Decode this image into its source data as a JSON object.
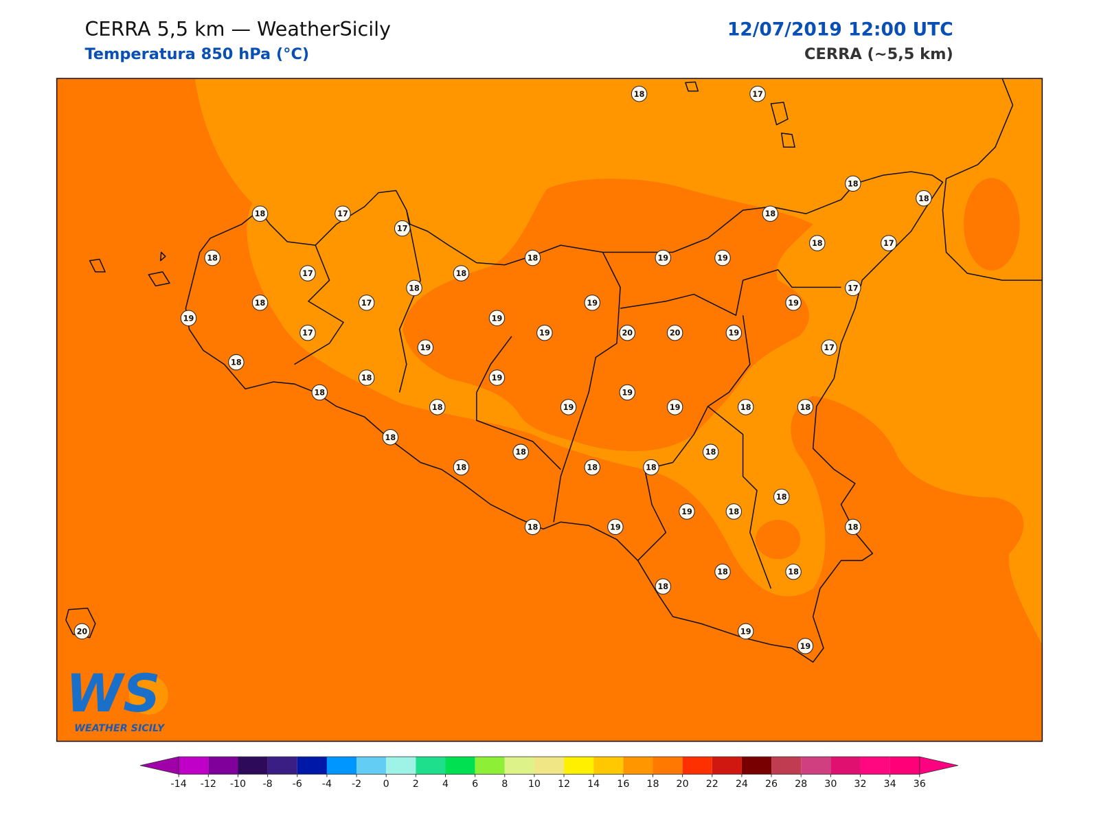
{
  "header": {
    "title": "CERRA 5,5 km — WeatherSicily",
    "subtitle": "Temperatura 850 hPa (°C)",
    "valid_time": "12/07/2019 12:00 UTC",
    "model": "CERRA (~5,5 km)"
  },
  "map": {
    "stations": [
      18,
      17,
      18,
      18,
      18,
      17,
      17,
      18,
      18,
      18,
      19,
      19,
      18,
      17,
      17,
      18,
      18,
      17,
      18,
      17,
      19,
      19,
      19,
      19,
      17,
      19,
      20,
      20,
      19,
      19,
      17,
      18,
      18,
      19,
      18,
      19,
      18,
      19,
      19,
      18,
      18,
      18,
      18,
      18,
      18,
      18,
      18,
      18,
      19,
      18,
      18,
      19,
      18,
      18,
      18,
      18,
      19,
      19,
      20
    ]
  },
  "colorbar": {
    "ticks": [
      -14,
      -12,
      -10,
      -8,
      -6,
      -4,
      -2,
      0,
      2,
      4,
      6,
      8,
      10,
      12,
      14,
      16,
      18,
      20,
      22,
      24,
      26,
      28,
      30,
      32,
      34,
      36
    ],
    "colors": [
      "#c000c8",
      "#80009c",
      "#2e0a5a",
      "#3a1e84",
      "#0018a8",
      "#0096ff",
      "#64cdf4",
      "#9ef2e6",
      "#1ee08c",
      "#00e050",
      "#8ef036",
      "#def28a",
      "#f0e686",
      "#fff000",
      "#ffc800",
      "#ff9600",
      "#ff7800",
      "#ff3000",
      "#d01810",
      "#780000",
      "#c03c50",
      "#d04080",
      "#e01070",
      "#ff0880",
      "#ff0078"
    ],
    "under_color": "#a000a8",
    "over_color": "#ff0080"
  },
  "logo": {
    "mark": "WS",
    "text": "WEATHER SICILY"
  }
}
